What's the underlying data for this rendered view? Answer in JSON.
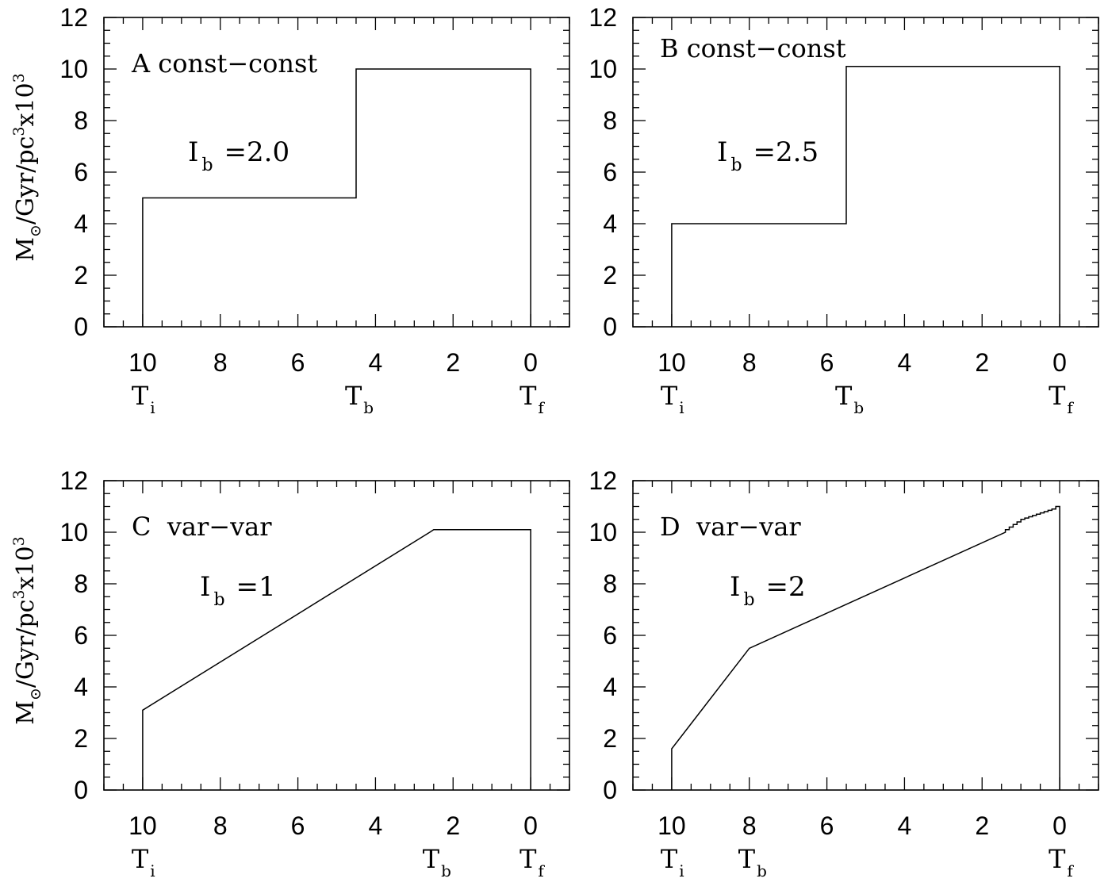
{
  "figure": {
    "ylabel_main": "M",
    "ylabel_sub": "⊙",
    "ylabel_rest": "/Gyr/pc",
    "ylabel_sup1": "3",
    "ylabel_x": "x10",
    "ylabel_sup2": "3"
  },
  "chart_data": [
    {
      "type": "line",
      "panel_label": "A const−const",
      "param_main": "I",
      "param_sub": "b",
      "param_value": "=2.0",
      "xlim": [
        11,
        -1
      ],
      "ylim": [
        0,
        12
      ],
      "xticks": [
        10,
        8,
        6,
        4,
        2,
        0
      ],
      "yticks": [
        0,
        2,
        4,
        6,
        8,
        10,
        12
      ],
      "time_markers": [
        {
          "main": "T",
          "sub": "i",
          "x": 10
        },
        {
          "main": "T",
          "sub": "b",
          "x": 4.5
        },
        {
          "main": "T",
          "sub": "f",
          "x": 0
        }
      ],
      "series": [
        {
          "x": [
            10,
            10,
            4.5,
            4.5,
            0,
            0
          ],
          "y": [
            0,
            5,
            5,
            10,
            10,
            0
          ]
        }
      ]
    },
    {
      "type": "line",
      "panel_label": "B const−const",
      "param_main": "I",
      "param_sub": "b",
      "param_value": "=2.5",
      "xlim": [
        11,
        -1
      ],
      "ylim": [
        0,
        12
      ],
      "xticks": [
        10,
        8,
        6,
        4,
        2,
        0
      ],
      "yticks": [
        0,
        2,
        4,
        6,
        8,
        10,
        12
      ],
      "time_markers": [
        {
          "main": "T",
          "sub": "i",
          "x": 10
        },
        {
          "main": "T",
          "sub": "b",
          "x": 5.5
        },
        {
          "main": "T",
          "sub": "f",
          "x": 0
        }
      ],
      "series": [
        {
          "x": [
            10,
            10,
            5.5,
            5.5,
            0,
            0
          ],
          "y": [
            0,
            4,
            4,
            10.1,
            10.1,
            0
          ]
        }
      ]
    },
    {
      "type": "line",
      "panel_label": "C  var−var",
      "param_main": "I",
      "param_sub": "b",
      "param_value": "=1",
      "xlim": [
        11,
        -1
      ],
      "ylim": [
        0,
        12
      ],
      "xticks": [
        10,
        8,
        6,
        4,
        2,
        0
      ],
      "yticks": [
        0,
        2,
        4,
        6,
        8,
        10,
        12
      ],
      "time_markers": [
        {
          "main": "T",
          "sub": "i",
          "x": 10
        },
        {
          "main": "T",
          "sub": "b",
          "x": 2.5
        },
        {
          "main": "T",
          "sub": "f",
          "x": 0
        }
      ],
      "series": [
        {
          "x": [
            10,
            10,
            2.6,
            2.5,
            0,
            0
          ],
          "y": [
            0,
            3.1,
            10.0,
            10.1,
            10.1,
            0
          ]
        }
      ]
    },
    {
      "type": "line",
      "panel_label": "D  var−var",
      "param_main": "I",
      "param_sub": "b",
      "param_value": "=2",
      "xlim": [
        11,
        -1
      ],
      "ylim": [
        0,
        12
      ],
      "xticks": [
        10,
        8,
        6,
        4,
        2,
        0
      ],
      "yticks": [
        0,
        2,
        4,
        6,
        8,
        10,
        12
      ],
      "time_markers": [
        {
          "main": "T",
          "sub": "i",
          "x": 10
        },
        {
          "main": "T",
          "sub": "b",
          "x": 8
        },
        {
          "main": "T",
          "sub": "f",
          "x": 0
        }
      ],
      "series": [
        {
          "x": [
            10,
            10,
            8,
            1.4,
            1.4,
            1.3,
            1.3,
            1.2,
            1.2,
            1.1,
            1.1,
            1.0,
            1.0,
            0.9,
            0.9,
            0.8,
            0.8,
            0.7,
            0.7,
            0.6,
            0.6,
            0.5,
            0.5,
            0.4,
            0.4,
            0.3,
            0.3,
            0.2,
            0.2,
            0.1,
            0.1,
            0,
            0
          ],
          "y": [
            0,
            1.6,
            5.5,
            10.0,
            10.1,
            10.1,
            10.2,
            10.2,
            10.3,
            10.3,
            10.4,
            10.4,
            10.5,
            10.5,
            10.55,
            10.55,
            10.6,
            10.6,
            10.65,
            10.65,
            10.7,
            10.7,
            10.75,
            10.75,
            10.8,
            10.8,
            10.85,
            10.85,
            10.9,
            10.9,
            11.0,
            11.0,
            0
          ]
        }
      ]
    }
  ]
}
